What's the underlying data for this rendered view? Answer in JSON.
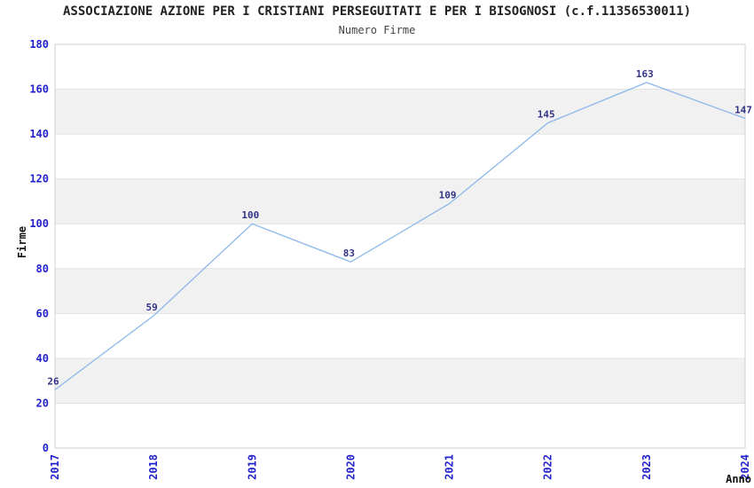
{
  "chart_data": {
    "type": "line",
    "title": "ASSOCIAZIONE AZIONE PER I CRISTIANI PERSEGUITATI E PER I BISOGNOSI (c.f.11356530011)",
    "subtitle": "Numero Firme",
    "xlabel": "Anno",
    "ylabel": "Firme",
    "categories": [
      "2017",
      "2018",
      "2019",
      "2020",
      "2021",
      "2022",
      "2023",
      "2024"
    ],
    "values": [
      26,
      59,
      100,
      83,
      109,
      145,
      163,
      147
    ],
    "point_labels": [
      "26",
      "59",
      "100",
      "83",
      "109",
      "145",
      "163",
      "147"
    ],
    "ylim": [
      0,
      180
    ],
    "ytick_step": 20,
    "ytick_labels": [
      "0",
      "20",
      "40",
      "60",
      "80",
      "100",
      "120",
      "140",
      "160",
      "180"
    ],
    "grid": "horizontal-alternating-bands",
    "legend": "none",
    "colors": {
      "line": "#8cb8ea",
      "tick_label": "#2222cc",
      "point_label": "#333388",
      "band_gray": "#f1f1f1",
      "band_white": "#ffffff",
      "plot_border": "#d0d0d0",
      "gridline": "#e2e2e2",
      "title": "#222222",
      "subtitle": "#444444",
      "axis_label": "#111111"
    }
  }
}
